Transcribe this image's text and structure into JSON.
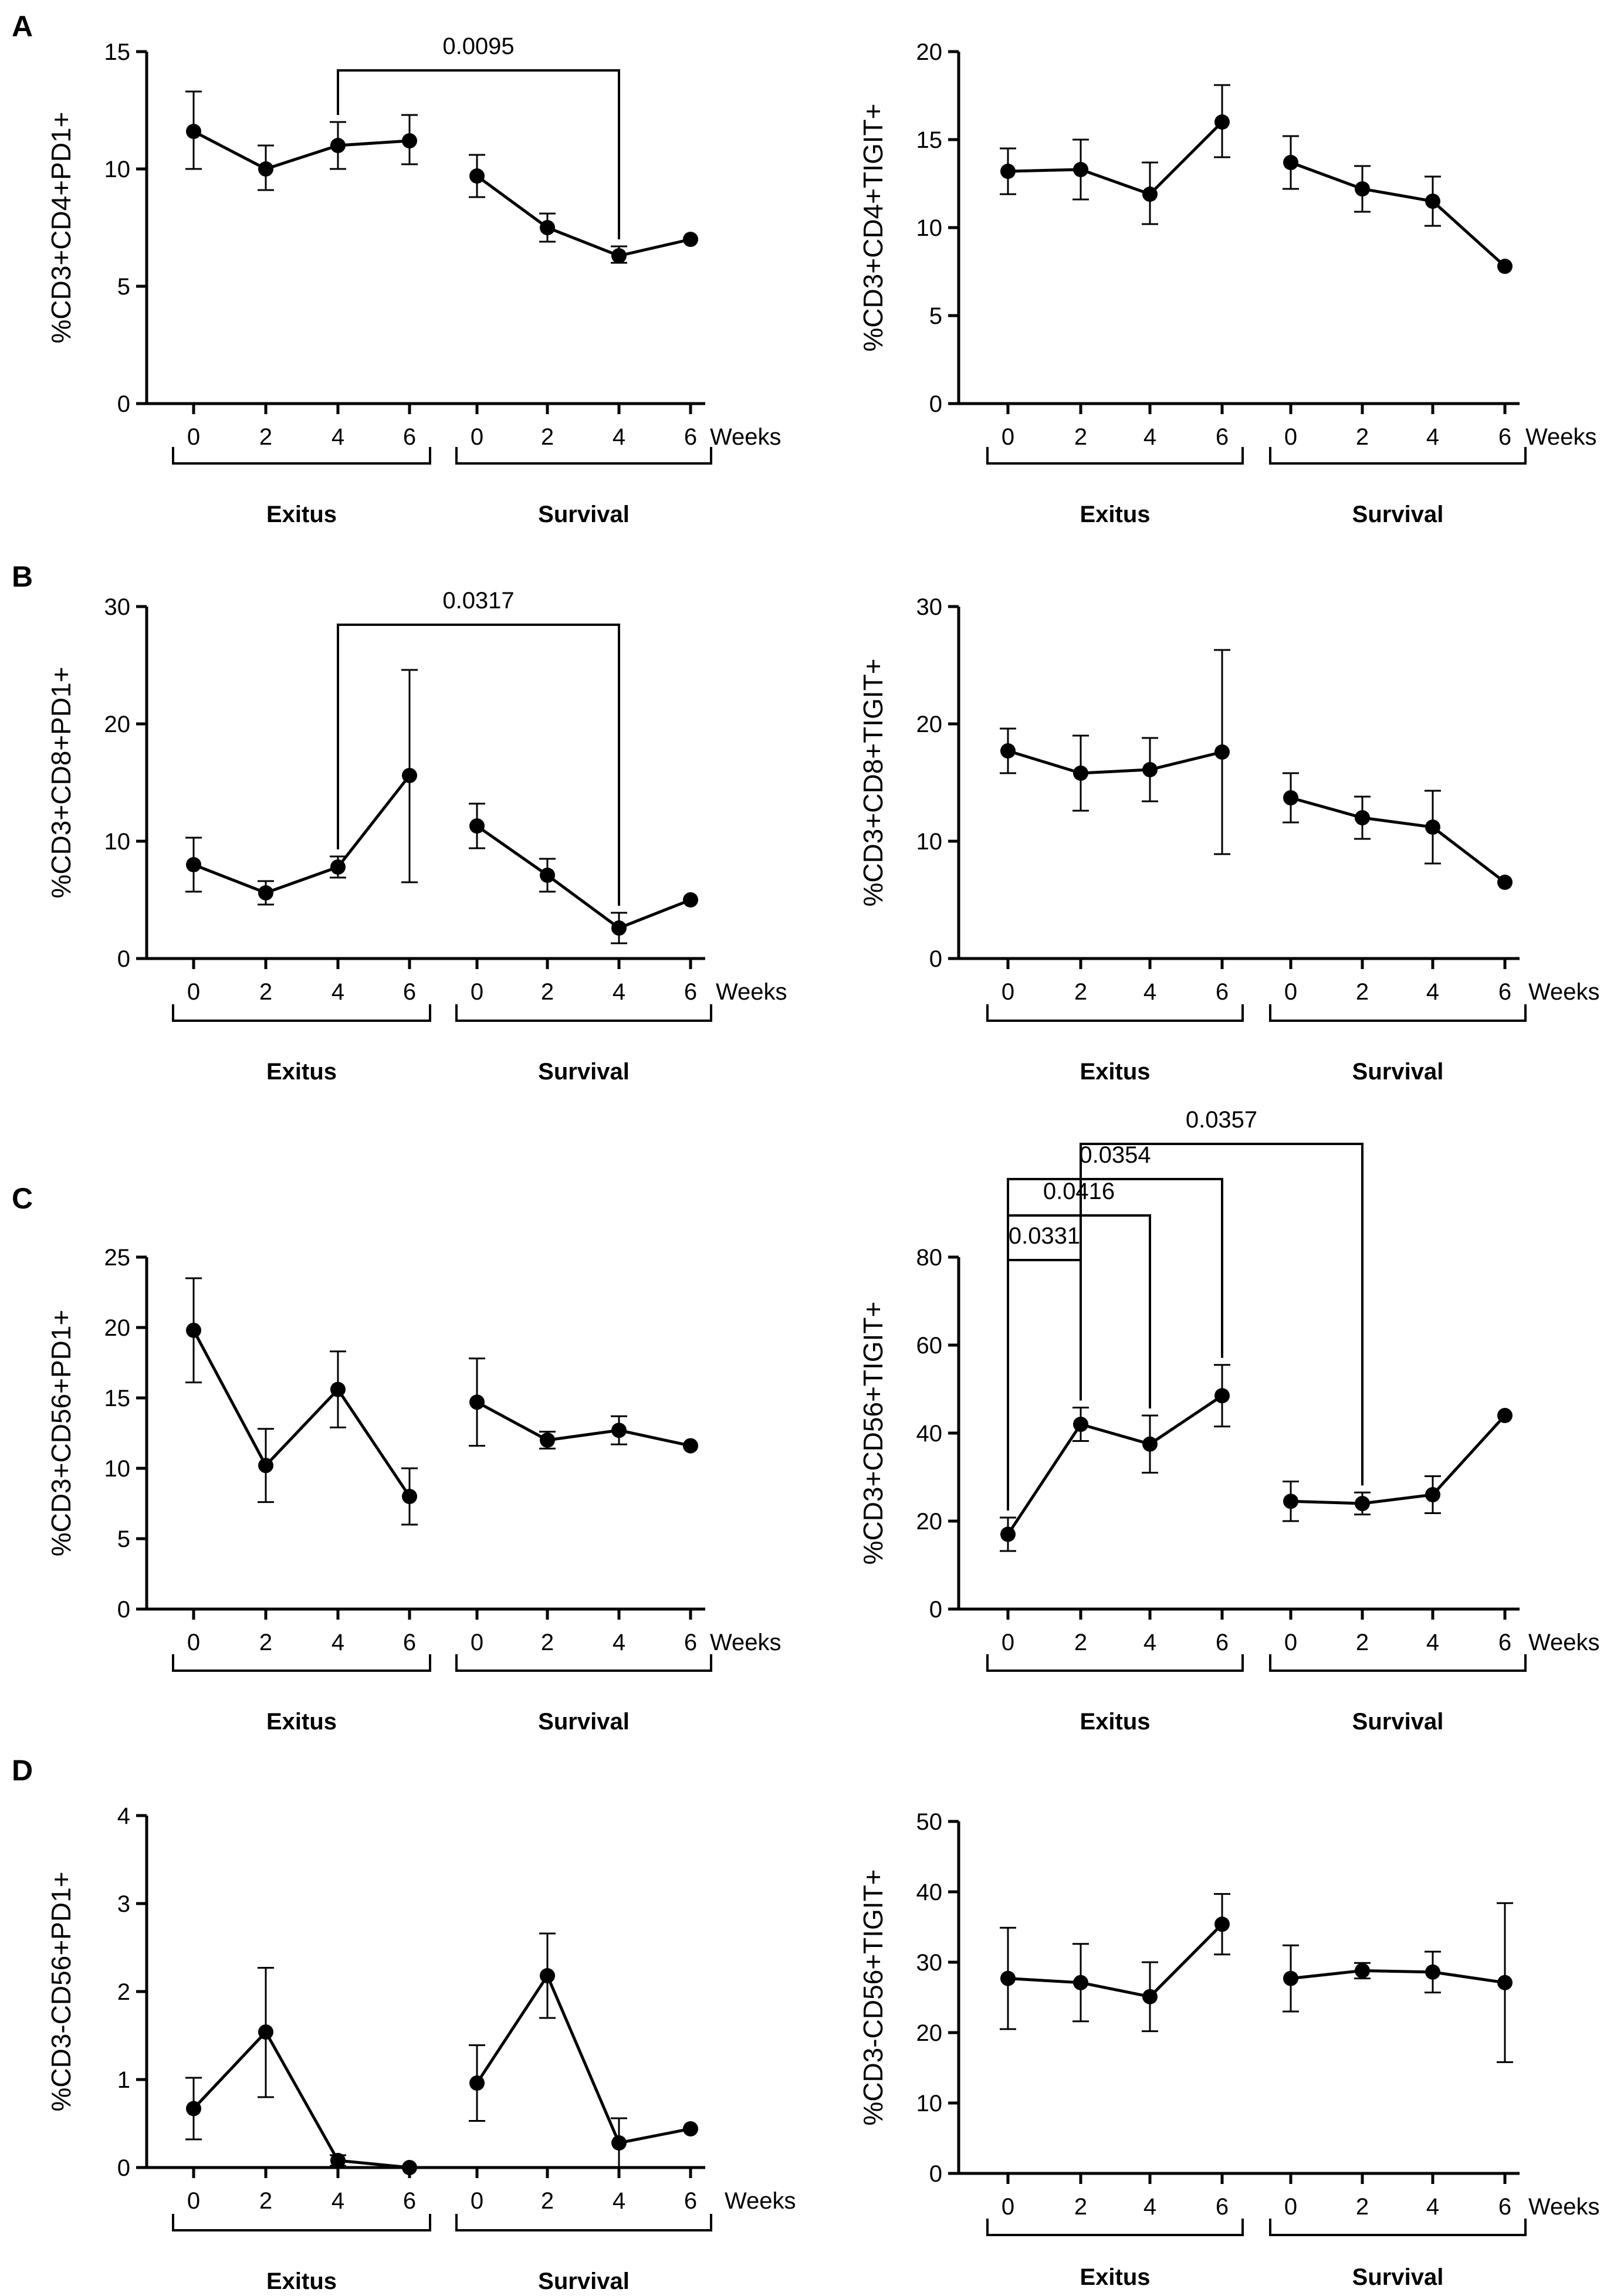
{
  "figure": {
    "panels": [
      {
        "letter": "A"
      },
      {
        "letter": "B"
      },
      {
        "letter": "C"
      },
      {
        "letter": "D"
      }
    ]
  },
  "chart_data": [
    {
      "panel": "A",
      "type": "line",
      "ylabel": "%CD3+CD4+PD1+",
      "ylim": [
        0,
        15
      ],
      "yticks": [
        0,
        5,
        10,
        15
      ],
      "x_tick_labels": [
        "0",
        "2",
        "4",
        "6",
        "0",
        "2",
        "4",
        "6"
      ],
      "x_unit_label": "Weeks",
      "groups": [
        {
          "label": "Exitus",
          "x": [
            0,
            2,
            4,
            6
          ],
          "mean": [
            11.6,
            10.0,
            11.0,
            11.2
          ],
          "err_low": [
            10.0,
            9.1,
            10.0,
            10.2
          ],
          "err_high": [
            13.3,
            11.0,
            12.0,
            12.3
          ]
        },
        {
          "label": "Survival",
          "x": [
            0,
            2,
            4,
            6
          ],
          "mean": [
            9.7,
            7.5,
            6.3,
            7.0
          ],
          "err_low": [
            8.8,
            6.9,
            6.0,
            7.0
          ],
          "err_high": [
            10.6,
            8.1,
            6.7,
            7.0
          ]
        }
      ],
      "comparisons": [
        {
          "p": "0.0095",
          "from": 2,
          "to": 6
        }
      ]
    },
    {
      "panel": "A",
      "type": "line",
      "ylabel": "%CD3+CD4+TIGIT+",
      "ylim": [
        0,
        20
      ],
      "yticks": [
        0,
        5,
        10,
        15,
        20
      ],
      "x_tick_labels": [
        "0",
        "2",
        "4",
        "6",
        "0",
        "2",
        "4",
        "6"
      ],
      "x_unit_label": "Weeks",
      "groups": [
        {
          "label": "Exitus",
          "x": [
            0,
            2,
            4,
            6
          ],
          "mean": [
            13.2,
            13.3,
            11.9,
            16.0
          ],
          "err_low": [
            11.9,
            11.6,
            10.2,
            14.0
          ],
          "err_high": [
            14.5,
            15.0,
            13.7,
            18.1
          ]
        },
        {
          "label": "Survival",
          "x": [
            0,
            2,
            4,
            6
          ],
          "mean": [
            13.7,
            12.2,
            11.5,
            7.8
          ],
          "err_low": [
            12.2,
            10.9,
            10.1,
            7.8
          ],
          "err_high": [
            15.2,
            13.5,
            12.9,
            7.8
          ]
        }
      ],
      "comparisons": []
    },
    {
      "panel": "B",
      "type": "line",
      "ylabel": "%CD3+CD8+PD1+",
      "ylim": [
        0,
        30
      ],
      "yticks": [
        0,
        10,
        20,
        30
      ],
      "x_tick_labels": [
        "0",
        "2",
        "4",
        "6",
        "0",
        "2",
        "4",
        "6"
      ],
      "x_unit_label": "Weeks",
      "groups": [
        {
          "label": "Exitus",
          "x": [
            0,
            2,
            4,
            6
          ],
          "mean": [
            8.0,
            5.6,
            7.8,
            15.6
          ],
          "err_low": [
            5.7,
            4.6,
            6.9,
            6.5
          ],
          "err_high": [
            10.3,
            6.6,
            8.7,
            24.6
          ]
        },
        {
          "label": "Survival",
          "x": [
            0,
            2,
            4,
            6
          ],
          "mean": [
            11.3,
            7.1,
            2.6,
            5.0
          ],
          "err_low": [
            9.4,
            5.7,
            1.3,
            5.0
          ],
          "err_high": [
            13.2,
            8.5,
            3.9,
            5.0
          ]
        }
      ],
      "comparisons": [
        {
          "p": "0.0317",
          "from": 2,
          "to": 6
        }
      ]
    },
    {
      "panel": "B",
      "type": "line",
      "ylabel": "%CD3+CD8+TIGIT+",
      "ylim": [
        0,
        30
      ],
      "yticks": [
        0,
        10,
        20,
        30
      ],
      "x_tick_labels": [
        "0",
        "2",
        "4",
        "6",
        "0",
        "2",
        "4",
        "6"
      ],
      "x_unit_label": "Weeks",
      "groups": [
        {
          "label": "Exitus",
          "x": [
            0,
            2,
            4,
            6
          ],
          "mean": [
            17.7,
            15.8,
            16.1,
            17.6
          ],
          "err_low": [
            15.8,
            12.6,
            13.4,
            8.9
          ],
          "err_high": [
            19.6,
            19.0,
            18.8,
            26.3
          ]
        },
        {
          "label": "Survival",
          "x": [
            0,
            2,
            4,
            6
          ],
          "mean": [
            13.7,
            12.0,
            11.2,
            6.5
          ],
          "err_low": [
            11.6,
            10.2,
            8.1,
            6.5
          ],
          "err_high": [
            15.8,
            13.8,
            14.3,
            6.5
          ]
        }
      ],
      "comparisons": []
    },
    {
      "panel": "C",
      "type": "line",
      "ylabel": "%CD3+CD56+PD1+",
      "ylim": [
        0,
        25
      ],
      "yticks": [
        0,
        5,
        10,
        15,
        20,
        25
      ],
      "x_tick_labels": [
        "0",
        "2",
        "4",
        "6",
        "0",
        "2",
        "4",
        "6"
      ],
      "x_unit_label": "Weeks",
      "groups": [
        {
          "label": "Exitus",
          "x": [
            0,
            2,
            4,
            6
          ],
          "mean": [
            19.8,
            10.2,
            15.6,
            8.0
          ],
          "err_low": [
            16.1,
            7.6,
            12.9,
            6.0
          ],
          "err_high": [
            23.5,
            12.8,
            18.3,
            10.0
          ]
        },
        {
          "label": "Survival",
          "x": [
            0,
            2,
            4,
            6
          ],
          "mean": [
            14.7,
            12.0,
            12.7,
            11.6
          ],
          "err_low": [
            11.6,
            11.4,
            11.7,
            11.6
          ],
          "err_high": [
            17.8,
            12.6,
            13.7,
            11.6
          ]
        }
      ],
      "comparisons": []
    },
    {
      "panel": "C",
      "type": "line",
      "ylabel": "%CD3+CD56+TIGIT+",
      "ylim": [
        0,
        80
      ],
      "yticks": [
        0,
        20,
        40,
        60,
        80
      ],
      "x_tick_labels": [
        "0",
        "2",
        "4",
        "6",
        "0",
        "2",
        "4",
        "6"
      ],
      "x_unit_label": "Weeks",
      "groups": [
        {
          "label": "Exitus",
          "x": [
            0,
            2,
            4,
            6
          ],
          "mean": [
            17.0,
            42.0,
            37.5,
            48.5
          ],
          "err_low": [
            13.2,
            38.2,
            31.0,
            41.5
          ],
          "err_high": [
            20.8,
            45.8,
            44.0,
            55.5
          ]
        },
        {
          "label": "Survival",
          "x": [
            0,
            2,
            4,
            6
          ],
          "mean": [
            24.5,
            24.0,
            26.0,
            44.0
          ],
          "err_low": [
            20.0,
            21.5,
            21.8,
            44.0
          ],
          "err_high": [
            29.0,
            26.5,
            30.2,
            44.0
          ]
        }
      ],
      "comparisons": [
        {
          "p": "0.0331",
          "from": 0,
          "to": 1
        },
        {
          "p": "0.0416",
          "from": 0,
          "to": 2
        },
        {
          "p": "0.0354",
          "from": 0,
          "to": 3
        },
        {
          "p": "0.0357",
          "from": 1,
          "to": 5
        }
      ]
    },
    {
      "panel": "D",
      "type": "line",
      "ylabel": "%CD3-CD56+PD1+",
      "ylim": [
        0,
        4
      ],
      "yticks": [
        0,
        1,
        2,
        3,
        4
      ],
      "x_tick_labels": [
        "0",
        "2",
        "4",
        "6",
        "0",
        "2",
        "4",
        "6"
      ],
      "x_unit_label": "Weeks",
      "groups": [
        {
          "label": "Exitus",
          "x": [
            0,
            2,
            4,
            6
          ],
          "mean": [
            0.67,
            1.54,
            0.08,
            0.0
          ],
          "err_low": [
            0.32,
            0.8,
            0.02,
            0.0
          ],
          "err_high": [
            1.02,
            2.27,
            0.14,
            0.0
          ]
        },
        {
          "label": "Survival",
          "x": [
            0,
            2,
            4,
            6
          ],
          "mean": [
            0.96,
            2.18,
            0.28,
            0.44
          ],
          "err_low": [
            0.53,
            1.7,
            0.0,
            0.44
          ],
          "err_high": [
            1.39,
            2.66,
            0.56,
            0.44
          ]
        }
      ],
      "comparisons": []
    },
    {
      "panel": "D",
      "type": "line",
      "ylabel": "%CD3-CD56+TIGIT+",
      "ylim": [
        0,
        50
      ],
      "yticks": [
        0,
        10,
        20,
        30,
        40,
        50
      ],
      "x_tick_labels": [
        "0",
        "2",
        "4",
        "6",
        "0",
        "2",
        "4",
        "6"
      ],
      "x_unit_label": "Weeks",
      "groups": [
        {
          "label": "Exitus",
          "x": [
            0,
            2,
            4,
            6
          ],
          "mean": [
            27.7,
            27.1,
            25.1,
            35.4
          ],
          "err_low": [
            20.5,
            21.6,
            20.2,
            31.1
          ],
          "err_high": [
            34.9,
            32.6,
            30.0,
            39.7
          ]
        },
        {
          "label": "Survival",
          "x": [
            0,
            2,
            4,
            6
          ],
          "mean": [
            27.7,
            28.8,
            28.6,
            27.1
          ],
          "err_low": [
            23.0,
            27.7,
            25.7,
            15.8
          ],
          "err_high": [
            32.4,
            29.9,
            31.5,
            38.4
          ]
        }
      ],
      "comparisons": []
    }
  ]
}
